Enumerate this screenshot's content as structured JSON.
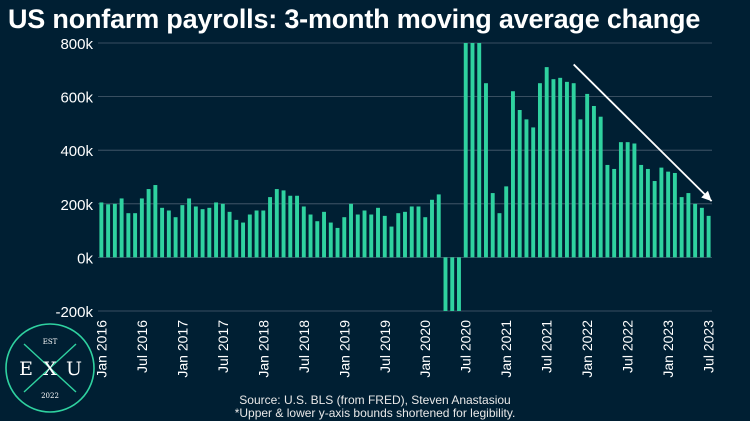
{
  "title": "US nonfarm payrolls: 3-month moving average change",
  "footer": {
    "source": "Source: U.S. BLS (from FRED), Steven Anastasiou",
    "note": "*Upper & lower y-axis bounds shortened for legibility."
  },
  "logo": {
    "top": "EST",
    "left_letter": "E",
    "mid_letter": "X",
    "right_letter": "U",
    "bottom": "2022"
  },
  "colors": {
    "background": "#001f33",
    "bar": "#2fd2a0",
    "grid": "#4a5e70",
    "arrow": "#ffffff",
    "text": "#ffffff"
  },
  "chart_data": {
    "type": "bar",
    "title": "US nonfarm payrolls: 3-month moving average change",
    "xlabel": "",
    "ylabel": "",
    "ylim": [
      -200,
      800
    ],
    "ytick_values": [
      -200,
      0,
      200,
      400,
      600,
      800
    ],
    "ytick_labels": [
      "-200k",
      "0k",
      "200k",
      "400k",
      "600k",
      "800k"
    ],
    "grid": "horizontal",
    "x_start": "2016-01",
    "xtick_labels": [
      "Jan 2016",
      "Jul 2016",
      "Jan 2017",
      "Jul 2017",
      "Jan 2018",
      "Jul 2018",
      "Jan 2019",
      "Jul 2019",
      "Jan 2020",
      "Jul 2020",
      "Jan 2021",
      "Jul 2021",
      "Jan 2022",
      "Jul 2022",
      "Jan 2023",
      "Jul 2023"
    ],
    "series": [
      {
        "name": "",
        "values": [
          205,
          198,
          200,
          220,
          165,
          165,
          220,
          255,
          270,
          185,
          175,
          150,
          195,
          220,
          190,
          180,
          185,
          205,
          200,
          170,
          140,
          130,
          160,
          175,
          175,
          225,
          255,
          250,
          230,
          230,
          190,
          160,
          135,
          170,
          130,
          110,
          150,
          200,
          160,
          175,
          160,
          185,
          155,
          115,
          165,
          170,
          190,
          190,
          150,
          215,
          235,
          -200,
          -200,
          -200,
          800,
          800,
          800,
          650,
          240,
          165,
          265,
          620,
          550,
          515,
          485,
          650,
          710,
          665,
          670,
          655,
          650,
          515,
          610,
          565,
          525,
          345,
          330,
          430,
          430,
          425,
          345,
          330,
          285,
          335,
          320,
          315,
          225,
          240,
          200,
          185,
          155
        ]
      }
    ],
    "annotations": [
      "downward trend arrow from mid-2021 peak to Jul 2023"
    ]
  }
}
